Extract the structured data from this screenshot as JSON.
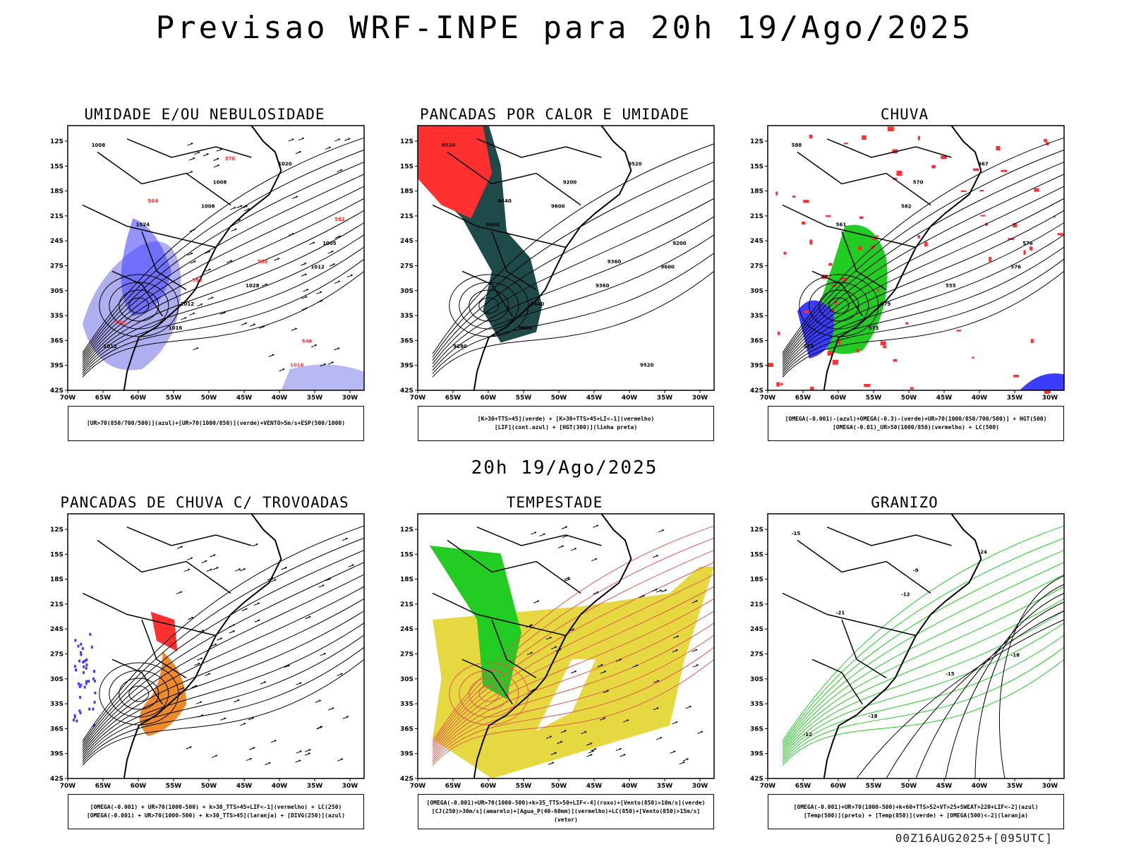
{
  "main_title": "Previsao WRF-INPE  para 20h 19/Ago/2025",
  "mid_title": "20h 19/Ago/2025",
  "footer": "00Z16AUG2025+[095UTC]",
  "lat_labels": [
    "12S",
    "15S",
    "18S",
    "21S",
    "24S",
    "27S",
    "30S",
    "33S",
    "36S",
    "39S",
    "42S"
  ],
  "lon_labels": [
    "70W",
    "65W",
    "60W",
    "55W",
    "50W",
    "45W",
    "40W",
    "35W",
    "30W"
  ],
  "colors": {
    "blue": "#3c3cff",
    "green": "#22cc22",
    "red": "#ff3030",
    "darkteal": "#1e4a4a",
    "yellow": "#e6d840",
    "orange": "#ee8a2a",
    "lavender": "#9a9aee"
  },
  "panels": [
    {
      "title": "UMIDADE E/OU NEBULOSIDADE",
      "legend": [
        "[UR>70(850/700/500)](azul)+[UR>70(1000/850)](verde)+VENTO>5m/s+ESP(500/1000)"
      ],
      "labels": [
        "1008",
        "1008",
        "1012",
        "1016",
        "1020",
        "1024",
        "1028",
        "1012",
        "1008",
        "1005",
        "1012",
        "1016",
        "564",
        "558",
        "570",
        "576",
        "582",
        "552",
        "546"
      ]
    },
    {
      "title": "PANCADAS POR CALOR E UMIDADE",
      "legend": [
        "[K>30+TTS>45](verde) + [K>30+TTS>45+LI<-1](vermelho)",
        "[LIF](cont.azul) + [HGT(300)](linha preta)"
      ],
      "labels": [
        "9520",
        "9600",
        "9600",
        "9600",
        "9520",
        "9440",
        "9360",
        "9280",
        "9200",
        "9200",
        "9440",
        "9520",
        "9440",
        "9360"
      ]
    },
    {
      "title": "CHUVA",
      "legend": [
        "[OMEGA(-0.001)-(azul)+OMEGA(-0.3)-(verde)+UR>70(1000/850/700/500)] + HGT(500)",
        "[OMEGA(-0.01)_UR>50(1000/850)(vermelho) + LC(500)"
      ],
      "labels": [
        "588",
        "582",
        "576",
        "573",
        "567",
        "561",
        "555",
        "573",
        "570",
        "576",
        "579"
      ]
    },
    {
      "title": "PANCADAS DE CHUVA C/ TROVOADAS",
      "legend": [
        "[OMEGA(-0.001) + UR>70(1000-500) + k>30_TTS>45+LIF<-1](vermelho) + LC(250)",
        "[OMEGA(-0.001) + UR>70(1000-500) + k>30_TTS>45](laranja) + [DIVG(250)](azul)"
      ],
      "labels": []
    },
    {
      "title": "TEMPESTADE",
      "legend": [
        "[OMEGA(-0.001)+UR>70(1000-500)+k>35_TTS>50+LIF<-4](roxo)+[Vento(850)>10m/s](verde)",
        "[CJ(250)>30m/s](amarelo)+[Agua_P(40-60mm)](vermelho)+LC(850)+[Vento(850)>15m/s](vetor)"
      ],
      "labels": []
    },
    {
      "title": "GRANIZO",
      "legend": [
        "[OMEGA(-0.001)+UR>70(1000-500)+k<60+TTS>52+VT>25+SWEAT>220+LIF<-2](azul)",
        "[Temp(500)](preto) + [Temp(850)](verde) + [OMEGA(500)<-2](laranja)"
      ],
      "labels": [
        "-15",
        "-12",
        "-18",
        "-18",
        "-24",
        "-21",
        "-15",
        "-12",
        "-9"
      ]
    }
  ]
}
